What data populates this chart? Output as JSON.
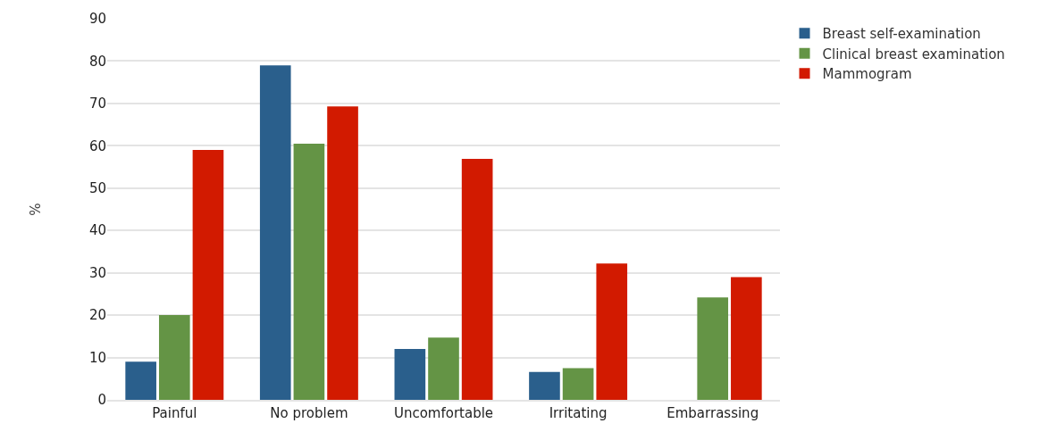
{
  "chart_data": {
    "type": "bar",
    "ylabel": "%",
    "categories": [
      "Painful",
      "No problem",
      "Uncomfortable",
      "Irritating",
      "Embarrassing"
    ],
    "series": [
      {
        "name": "Breast self-examination",
        "color": "#2a5f8c",
        "values": [
          9,
          79,
          12,
          6.6,
          null
        ]
      },
      {
        "name": "Clinical breast examination",
        "color": "#649445",
        "values": [
          20,
          60.5,
          14.7,
          7.5,
          24.2
        ]
      },
      {
        "name": "Mammogram",
        "color": "#d21a00",
        "values": [
          59,
          69.3,
          56.9,
          32.2,
          29
        ]
      }
    ],
    "ylim": [
      0,
      90
    ],
    "yticks": [
      0,
      10,
      20,
      30,
      40,
      50,
      60,
      70,
      80,
      90
    ],
    "grid": "y",
    "legend": "top right"
  }
}
